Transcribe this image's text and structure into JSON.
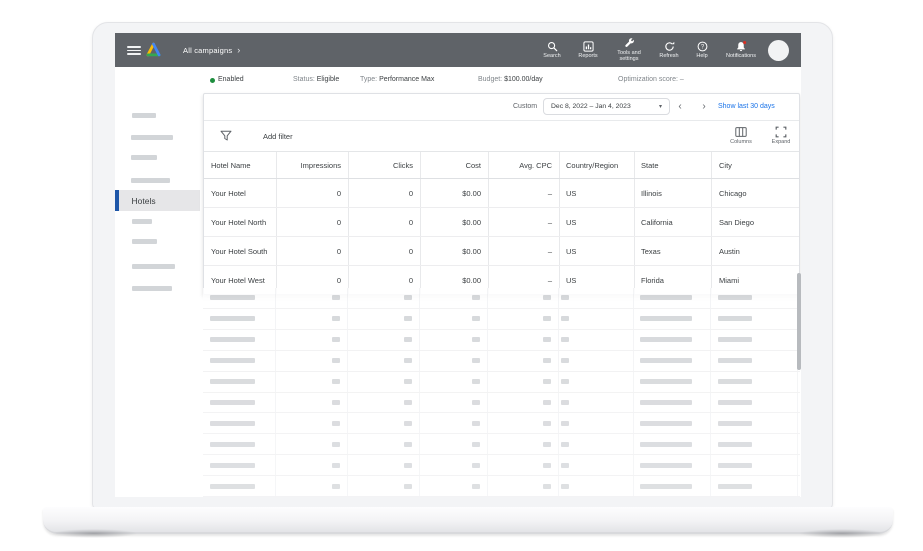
{
  "header": {
    "breadcrumb": "All campaigns",
    "nav_items": [
      {
        "label": "Search",
        "icon": "search-icon"
      },
      {
        "label": "Reports",
        "icon": "reports-icon"
      },
      {
        "label": "Tools and\nsettings",
        "icon": "tools-icon"
      },
      {
        "label": "Refresh",
        "icon": "refresh-icon"
      },
      {
        "label": "Help",
        "icon": "help-icon"
      },
      {
        "label": "Notifications",
        "icon": "notifications-icon"
      }
    ]
  },
  "campaign_bar": {
    "enabled_label": "Enabled",
    "status_label": "Status:",
    "status_value": "Eligible",
    "type_label": "Type:",
    "type_value": "Performance Max",
    "budget_label": "Budget:",
    "budget_value": "$100.00/day",
    "optimization_label": "Optimization score:",
    "optimization_value": "–"
  },
  "sidebar": {
    "selected_item": "Hotels"
  },
  "date_range": {
    "mode_label": "Custom",
    "value": "Dec 8, 2022 – Jan 4, 2023",
    "caret": "▾",
    "prev": "‹",
    "next": "›",
    "link": "Show last 30 days"
  },
  "toolbar": {
    "add_filter_label": "Add filter",
    "columns_label": "Columns",
    "expand_label": "Expand"
  },
  "table": {
    "columns": [
      "Hotel Name",
      "Impressions",
      "Clicks",
      "Cost",
      "Avg. CPC",
      "Country/Region",
      "State",
      "City"
    ],
    "rows": [
      [
        "Your Hotel",
        "0",
        "0",
        "$0.00",
        "–",
        "US",
        "Illinois",
        "Chicago"
      ],
      [
        "Your Hotel North",
        "0",
        "0",
        "$0.00",
        "–",
        "US",
        "California",
        "San Diego"
      ],
      [
        "Your Hotel South",
        "0",
        "0",
        "$0.00",
        "–",
        "US",
        "Texas",
        "Austin"
      ],
      [
        "Your Hotel West",
        "0",
        "0",
        "$0.00",
        "–",
        "US",
        "Florida",
        "Miami"
      ]
    ],
    "skeleton_row_count": 10
  },
  "colors": {
    "appbar_bg": "#5f6368",
    "link_blue": "#1a73e8",
    "enabled_green": "#1e8e3e",
    "selected_accent_blue": "#1e56a8",
    "notification_badge_red": "#d93025",
    "logo_blue": "#4285f4",
    "logo_green": "#34a853",
    "logo_yellow": "#fbbc04"
  }
}
